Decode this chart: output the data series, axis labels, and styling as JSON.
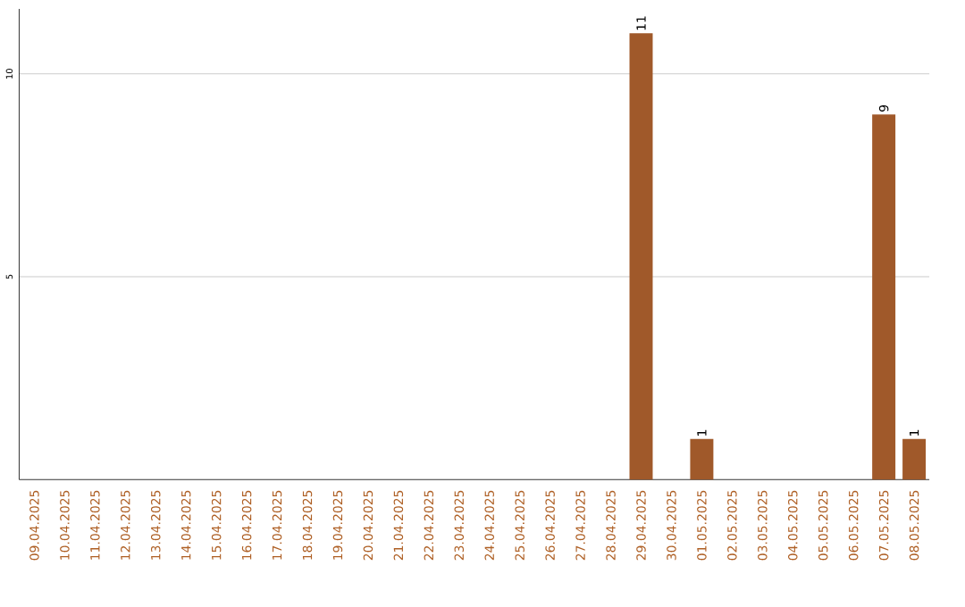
{
  "chart_data": {
    "type": "bar",
    "categories": [
      "09.04.2025",
      "10.04.2025",
      "11.04.2025",
      "12.04.2025",
      "13.04.2025",
      "14.04.2025",
      "15.04.2025",
      "16.04.2025",
      "17.04.2025",
      "18.04.2025",
      "19.04.2025",
      "20.04.2025",
      "21.04.2025",
      "22.04.2025",
      "23.04.2025",
      "24.04.2025",
      "25.04.2025",
      "26.04.2025",
      "27.04.2025",
      "28.04.2025",
      "29.04.2025",
      "30.04.2025",
      "01.05.2025",
      "02.05.2025",
      "03.05.2025",
      "04.05.2025",
      "05.05.2025",
      "06.05.2025",
      "07.05.2025",
      "08.05.2025"
    ],
    "values": [
      0,
      0,
      0,
      0,
      0,
      0,
      0,
      0,
      0,
      0,
      0,
      0,
      0,
      0,
      0,
      0,
      0,
      0,
      0,
      0,
      11,
      0,
      1,
      0,
      0,
      0,
      0,
      0,
      9,
      1
    ],
    "value_labels": [
      null,
      null,
      null,
      null,
      null,
      null,
      null,
      null,
      null,
      null,
      null,
      null,
      null,
      null,
      null,
      null,
      null,
      null,
      null,
      null,
      "11",
      null,
      "1",
      null,
      null,
      null,
      null,
      null,
      "9",
      "1"
    ],
    "color": "#a0592a",
    "ylim": [
      0,
      11.6
    ],
    "yticks": [
      5,
      10
    ],
    "grid": "y"
  }
}
